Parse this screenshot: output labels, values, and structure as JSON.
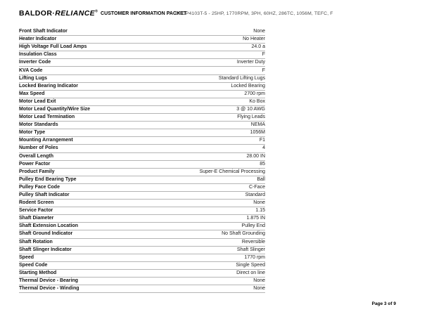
{
  "header": {
    "logo": {
      "brand_left": "BALDOR",
      "separator": "·",
      "brand_right": "RELIANCE",
      "mark": "®"
    },
    "doc_title": "CUSTOMER INFORMATION PACKET",
    "product_spec": "CECP4103T-5 - 25HP, 1770RPM, 3PH, 60HZ, 286TC, 1056M, TEFC, F"
  },
  "spec_table": {
    "rows": [
      {
        "label": "Front Shaft Indicator",
        "value": "None"
      },
      {
        "label": "Heater Indicator",
        "value": "No Heater"
      },
      {
        "label": "High Voltage Full Load Amps",
        "value": "24.0 a"
      },
      {
        "label": "Insulation Class",
        "value": "F"
      },
      {
        "label": "Inverter Code",
        "value": "Inverter Duty"
      },
      {
        "label": "KVA Code",
        "value": "F"
      },
      {
        "label": "Lifting Lugs",
        "value": "Standard Lifting Lugs"
      },
      {
        "label": "Locked Bearing Indicator",
        "value": "Locked Bearing"
      },
      {
        "label": "Max Speed",
        "value": "2700 rpm"
      },
      {
        "label": "Motor Lead Exit",
        "value": "Ko Box"
      },
      {
        "label": "Motor Lead Quantity/Wire Size",
        "value": "3 @ 10 AWG"
      },
      {
        "label": "Motor Lead Termination",
        "value": "Flying Leads"
      },
      {
        "label": "Motor Standards",
        "value": "NEMA"
      },
      {
        "label": "Motor Type",
        "value": "1056M"
      },
      {
        "label": "Mounting Arrangement",
        "value": "F1"
      },
      {
        "label": "Number of Poles",
        "value": "4"
      },
      {
        "label": "Overall Length",
        "value": "28.00 IN"
      },
      {
        "label": "Power Factor",
        "value": "85"
      },
      {
        "label": "Product Family",
        "value": "Super-E Chemical Processing"
      },
      {
        "label": "Pulley End Bearing Type",
        "value": "Ball"
      },
      {
        "label": "Pulley Face Code",
        "value": "C-Face"
      },
      {
        "label": "Pulley Shaft Indicator",
        "value": "Standard"
      },
      {
        "label": "Rodent Screen",
        "value": "None"
      },
      {
        "label": "Service Factor",
        "value": "1.15"
      },
      {
        "label": "Shaft Diameter",
        "value": "1.875 IN"
      },
      {
        "label": "Shaft Extension Location",
        "value": "Pulley End"
      },
      {
        "label": "Shaft Ground Indicator",
        "value": "No Shaft Grounding"
      },
      {
        "label": "Shaft Rotation",
        "value": "Reversible"
      },
      {
        "label": "Shaft Slinger Indicator",
        "value": "Shaft Slinger"
      },
      {
        "label": "Speed",
        "value": "1770 rpm"
      },
      {
        "label": "Speed Code",
        "value": "Single Speed"
      },
      {
        "label": "Starting Method",
        "value": "Direct on line"
      },
      {
        "label": "Thermal Device - Bearing",
        "value": "None"
      },
      {
        "label": "Thermal Device - Winding",
        "value": "None"
      }
    ]
  },
  "footer": {
    "page_indicator": "Page 3 of 9"
  }
}
